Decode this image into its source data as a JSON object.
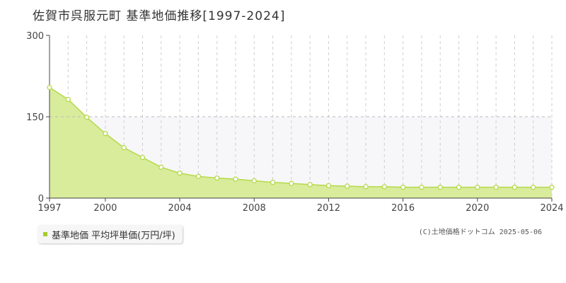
{
  "title": "佐賀市呉服元町 基準地価推移[1997-2024]",
  "legend": {
    "label": "基準地価 平均坪単価(万円/坪)"
  },
  "copyright": "(C)土地価格ドットコム 2025-05-06",
  "colors": {
    "fill": "#d8ec9c",
    "line": "#b6d94a",
    "point_stroke": "#b6d94a",
    "legend_swatch": "#a8cc2c"
  },
  "chart_data": {
    "type": "area",
    "x": [
      1997,
      1998,
      1999,
      2000,
      2001,
      2002,
      2003,
      2004,
      2005,
      2006,
      2007,
      2008,
      2009,
      2010,
      2011,
      2012,
      2013,
      2014,
      2015,
      2016,
      2017,
      2018,
      2019,
      2020,
      2021,
      2022,
      2023,
      2024
    ],
    "series": [
      {
        "name": "基準地価 平均坪単価(万円/坪)",
        "values": [
          204,
          182,
          149,
          119,
          93,
          75,
          57,
          46,
          40,
          37,
          35,
          32,
          29,
          27,
          25,
          23,
          22,
          21,
          21,
          20,
          20,
          20,
          20,
          20,
          20,
          20,
          20,
          20
        ]
      }
    ],
    "xticks": [
      "1997",
      "2000",
      "2004",
      "2008",
      "2012",
      "2016",
      "2020",
      "2024"
    ],
    "yticks": [
      "0",
      "150",
      "300"
    ],
    "ylim": [
      0,
      300
    ],
    "xlim": [
      1997,
      2024
    ],
    "grid": true
  }
}
